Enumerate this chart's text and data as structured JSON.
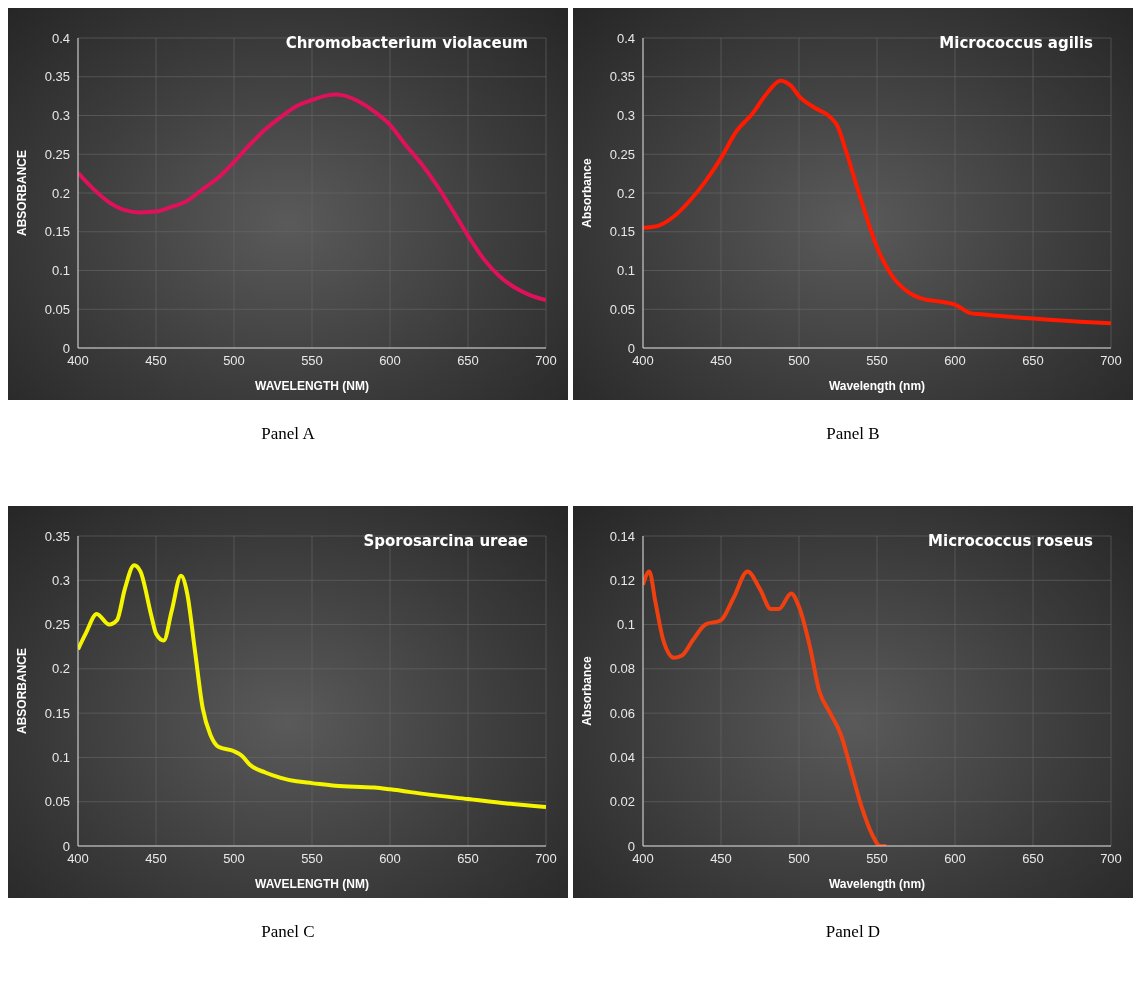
{
  "chart_data": [
    {
      "type": "line",
      "title": "Chromobacterium violaceum",
      "xlabel": "WAVELENGTH (NM)",
      "ylabel": "ABSORBANCE",
      "annotations": [
        "Panel A"
      ],
      "color": "#e0105a",
      "grid": true,
      "xlim": [
        400,
        700
      ],
      "xticks": [
        400,
        450,
        500,
        550,
        600,
        650,
        700
      ],
      "ylim": [
        0,
        0.4
      ],
      "yticks": [
        0,
        0.05,
        0.1,
        0.15,
        0.2,
        0.25,
        0.3,
        0.35,
        0.4
      ],
      "x": [
        400,
        410,
        420,
        430,
        440,
        450,
        460,
        470,
        480,
        490,
        500,
        510,
        520,
        530,
        540,
        550,
        560,
        565,
        570,
        580,
        590,
        600,
        610,
        620,
        630,
        640,
        650,
        660,
        670,
        680,
        690,
        700
      ],
      "values": [
        0.226,
        0.205,
        0.188,
        0.178,
        0.175,
        0.176,
        0.182,
        0.19,
        0.205,
        0.22,
        0.24,
        0.262,
        0.282,
        0.298,
        0.312,
        0.32,
        0.326,
        0.327,
        0.326,
        0.318,
        0.305,
        0.288,
        0.262,
        0.238,
        0.21,
        0.178,
        0.145,
        0.115,
        0.093,
        0.078,
        0.068,
        0.062
      ]
    },
    {
      "type": "line",
      "title": "Micrococcus agilis",
      "xlabel": "Wavelength (nm)",
      "ylabel": "Absorbance",
      "annotations": [
        "Panel B"
      ],
      "color": "#ff1a00",
      "grid": true,
      "xlim": [
        400,
        700
      ],
      "xticks": [
        400,
        450,
        500,
        550,
        600,
        650,
        700
      ],
      "ylim": [
        0,
        0.4
      ],
      "yticks": [
        0,
        0.05,
        0.1,
        0.15,
        0.2,
        0.25,
        0.3,
        0.35,
        0.4
      ],
      "x": [
        400,
        410,
        420,
        430,
        440,
        450,
        460,
        470,
        480,
        488,
        495,
        500,
        510,
        520,
        525,
        530,
        540,
        550,
        560,
        570,
        580,
        590,
        600,
        610,
        620,
        650,
        680,
        700
      ],
      "values": [
        0.155,
        0.158,
        0.17,
        0.19,
        0.215,
        0.245,
        0.28,
        0.302,
        0.33,
        0.345,
        0.338,
        0.325,
        0.31,
        0.298,
        0.285,
        0.255,
        0.19,
        0.13,
        0.092,
        0.072,
        0.063,
        0.06,
        0.056,
        0.045,
        0.043,
        0.038,
        0.034,
        0.032
      ]
    },
    {
      "type": "line",
      "title": "Sporosarcina ureae",
      "xlabel": "WAVELENGTH (NM)",
      "ylabel": "ABSORBANCE",
      "annotations": [
        "Panel C"
      ],
      "color": "#f5f500",
      "grid": true,
      "xlim": [
        400,
        700
      ],
      "xticks": [
        400,
        450,
        500,
        550,
        600,
        650,
        700
      ],
      "ylim": [
        0,
        0.35
      ],
      "yticks": [
        0,
        0.05,
        0.1,
        0.15,
        0.2,
        0.25,
        0.3,
        0.35
      ],
      "x": [
        400,
        405,
        412,
        420,
        425,
        430,
        436,
        440,
        447,
        450,
        455,
        460,
        466,
        470,
        475,
        480,
        485,
        490,
        500,
        505,
        510,
        520,
        530,
        540,
        550,
        565,
        590,
        600,
        625,
        650,
        675,
        700
      ],
      "values": [
        0.222,
        0.24,
        0.262,
        0.25,
        0.255,
        0.29,
        0.317,
        0.31,
        0.26,
        0.24,
        0.232,
        0.265,
        0.305,
        0.285,
        0.22,
        0.155,
        0.125,
        0.112,
        0.107,
        0.102,
        0.092,
        0.083,
        0.077,
        0.073,
        0.071,
        0.068,
        0.066,
        0.064,
        0.058,
        0.053,
        0.048,
        0.044
      ]
    },
    {
      "type": "line",
      "title": "Micrococcus roseus",
      "xlabel": "Wavelength (nm)",
      "ylabel": "Absorbance",
      "annotations": [
        "Panel D"
      ],
      "color": "#f04010",
      "grid": true,
      "xlim": [
        400,
        700
      ],
      "xticks": [
        400,
        450,
        500,
        550,
        600,
        650,
        700
      ],
      "ylim": [
        0,
        0.14
      ],
      "yticks": [
        0,
        0.02,
        0.04,
        0.06,
        0.08,
        0.1,
        0.12,
        0.14
      ],
      "x": [
        400,
        404,
        408,
        413,
        420,
        425,
        432,
        440,
        450,
        458,
        467,
        475,
        482,
        487,
        495,
        500,
        507,
        513,
        520,
        527,
        532,
        540,
        547,
        552,
        556
      ],
      "values": [
        0.118,
        0.124,
        0.11,
        0.093,
        0.085,
        0.086,
        0.093,
        0.1,
        0.102,
        0.112,
        0.124,
        0.116,
        0.107,
        0.107,
        0.114,
        0.108,
        0.09,
        0.07,
        0.06,
        0.05,
        0.038,
        0.018,
        0.005,
        0,
        0
      ]
    }
  ]
}
